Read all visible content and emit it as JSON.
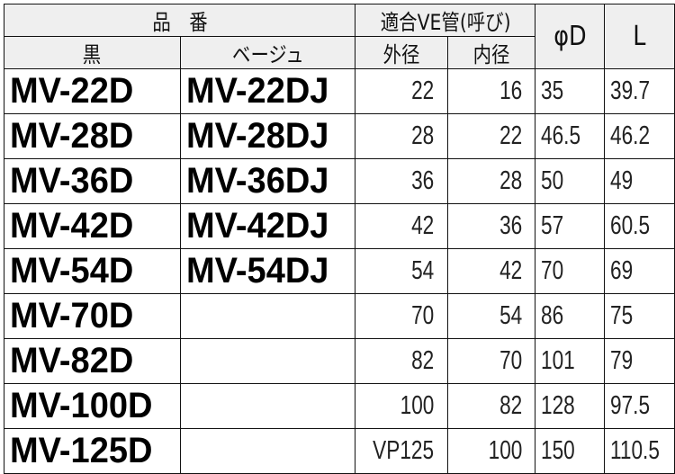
{
  "header": {
    "part_number": "品　番",
    "black": "黒",
    "beige": "ベージュ",
    "fit_pipe": "適合VE管(呼び)",
    "outer": "外径",
    "inner": "内径",
    "phi_d": "φD",
    "l": "L"
  },
  "rows": [
    {
      "black": "MV-22D",
      "beige": "MV-22DJ",
      "outer": "22",
      "inner": "16",
      "phi_d": "35",
      "l": "39.7"
    },
    {
      "black": "MV-28D",
      "beige": "MV-28DJ",
      "outer": "28",
      "inner": "22",
      "phi_d": "46.5",
      "l": "46.2"
    },
    {
      "black": "MV-36D",
      "beige": "MV-36DJ",
      "outer": "36",
      "inner": "28",
      "phi_d": "50",
      "l": "49"
    },
    {
      "black": "MV-42D",
      "beige": "MV-42DJ",
      "outer": "42",
      "inner": "36",
      "phi_d": "57",
      "l": "60.5"
    },
    {
      "black": "MV-54D",
      "beige": "MV-54DJ",
      "outer": "54",
      "inner": "42",
      "phi_d": "70",
      "l": "69"
    },
    {
      "black": "MV-70D",
      "beige": "",
      "outer": "70",
      "inner": "54",
      "phi_d": "86",
      "l": "75"
    },
    {
      "black": "MV-82D",
      "beige": "",
      "outer": "82",
      "inner": "70",
      "phi_d": "101",
      "l": "79"
    },
    {
      "black": "MV-100D",
      "beige": "",
      "outer": "100",
      "inner": "82",
      "phi_d": "128",
      "l": "97.5"
    },
    {
      "black": "MV-125D",
      "beige": "",
      "outer": "VP125",
      "inner": "100",
      "phi_d": "150",
      "l": "110.5"
    }
  ]
}
